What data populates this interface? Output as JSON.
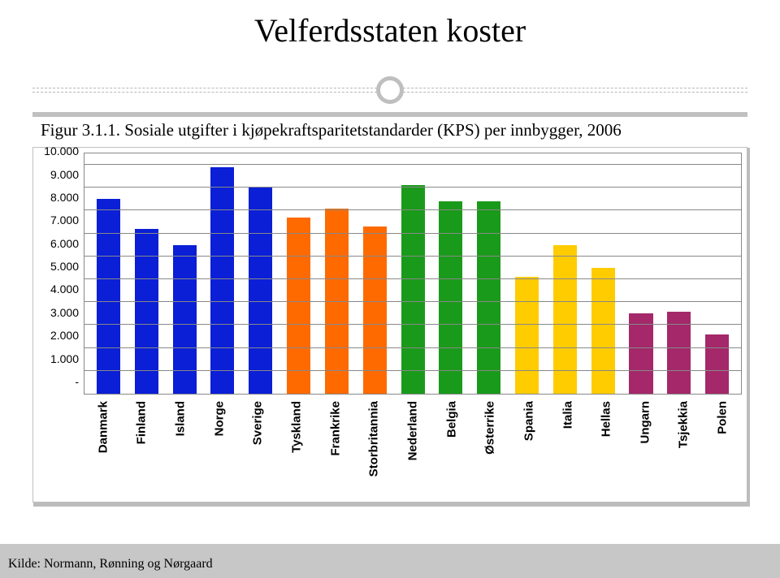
{
  "title": "Velferdsstaten koster",
  "caption": "Figur 3.1.1. Sosiale utgifter i kjøpekraftsparitetstandarder (KPS) per innbygger, 2006",
  "source": "Kilde: Normann, Rønning og Nørgaard",
  "chart": {
    "type": "bar",
    "ylim": [
      0,
      10500
    ],
    "yticks": [
      {
        "value": 0,
        "label": "-"
      },
      {
        "value": 1000,
        "label": "1.000"
      },
      {
        "value": 2000,
        "label": "2.000"
      },
      {
        "value": 3000,
        "label": "3.000"
      },
      {
        "value": 4000,
        "label": "4.000"
      },
      {
        "value": 5000,
        "label": "5.000"
      },
      {
        "value": 6000,
        "label": "6.000"
      },
      {
        "value": 7000,
        "label": "7.000"
      },
      {
        "value": 8000,
        "label": "8.000"
      },
      {
        "value": 9000,
        "label": "9.000"
      },
      {
        "value": 10000,
        "label": "10.000"
      }
    ],
    "grid_color": "#888888",
    "background_color": "#ffffff",
    "bar_width": 0.62,
    "colors": {
      "nordic": "#0a1fd6",
      "continental": "#ff6a00",
      "benelux": "#1a9a1a",
      "south": "#ffcc00",
      "east": "#a4286a"
    },
    "data": [
      {
        "label": "Danmark",
        "value": 8500,
        "color": "#0a1fd6"
      },
      {
        "label": "Finland",
        "value": 7200,
        "color": "#0a1fd6"
      },
      {
        "label": "Island",
        "value": 6500,
        "color": "#0a1fd6"
      },
      {
        "label": "Norge",
        "value": 9900,
        "color": "#0a1fd6"
      },
      {
        "label": "Sverige",
        "value": 9000,
        "color": "#0a1fd6"
      },
      {
        "label": "Tyskland",
        "value": 7700,
        "color": "#ff6a00"
      },
      {
        "label": "Frankrike",
        "value": 8100,
        "color": "#ff6a00"
      },
      {
        "label": "Storbritannia",
        "value": 7300,
        "color": "#ff6a00"
      },
      {
        "label": "Nederland",
        "value": 9100,
        "color": "#1a9a1a"
      },
      {
        "label": "Belgia",
        "value": 8400,
        "color": "#1a9a1a"
      },
      {
        "label": "Østerrike",
        "value": 8400,
        "color": "#1a9a1a"
      },
      {
        "label": "Spania",
        "value": 5100,
        "color": "#ffcc00"
      },
      {
        "label": "Italia",
        "value": 6500,
        "color": "#ffcc00"
      },
      {
        "label": "Hellas",
        "value": 5500,
        "color": "#ffcc00"
      },
      {
        "label": "Ungarn",
        "value": 3500,
        "color": "#a4286a"
      },
      {
        "label": "Tsjekkia",
        "value": 3600,
        "color": "#a4286a"
      },
      {
        "label": "Polen",
        "value": 2600,
        "color": "#a4286a"
      }
    ],
    "label_fontsize": 15,
    "label_fontweight": "bold",
    "tick_fontsize": 14
  }
}
